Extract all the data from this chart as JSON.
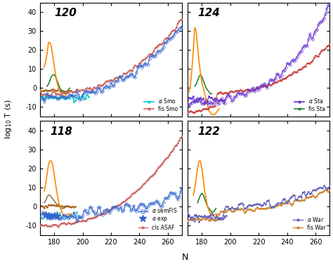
{
  "xlim": [
    170,
    270
  ],
  "ylim": [
    -15,
    45
  ],
  "yticks": [
    -10,
    0,
    10,
    20,
    30,
    40
  ],
  "xticks": [
    180,
    200,
    220,
    240,
    260
  ],
  "xlabel": "N",
  "ylabel": "log$_{10}$ T (s)",
  "panels": {
    "120": {
      "label": "120",
      "alpha_color": "#3366cc",
      "fis_color": "#cc6666",
      "cluster_color": "#ff8800",
      "green_color": "#228833",
      "cyan_color": "#00cccc"
    },
    "124": {
      "label": "124",
      "alpha_color": "#6633cc",
      "fis_color": "#cc4444",
      "cluster_color": "#ff8800",
      "green_color": "#228833"
    },
    "118": {
      "label": "118",
      "alpha_color": "#3366cc",
      "cls_color": "#cc6666",
      "cluster_color": "#ff8800",
      "brown_color": "#886633",
      "cyan_color": "#44bbcc"
    },
    "122": {
      "label": "122",
      "alpha_color": "#6666bb",
      "fis_color": "#cc8833",
      "cluster_color": "#ff8800",
      "green_color": "#228833"
    }
  }
}
